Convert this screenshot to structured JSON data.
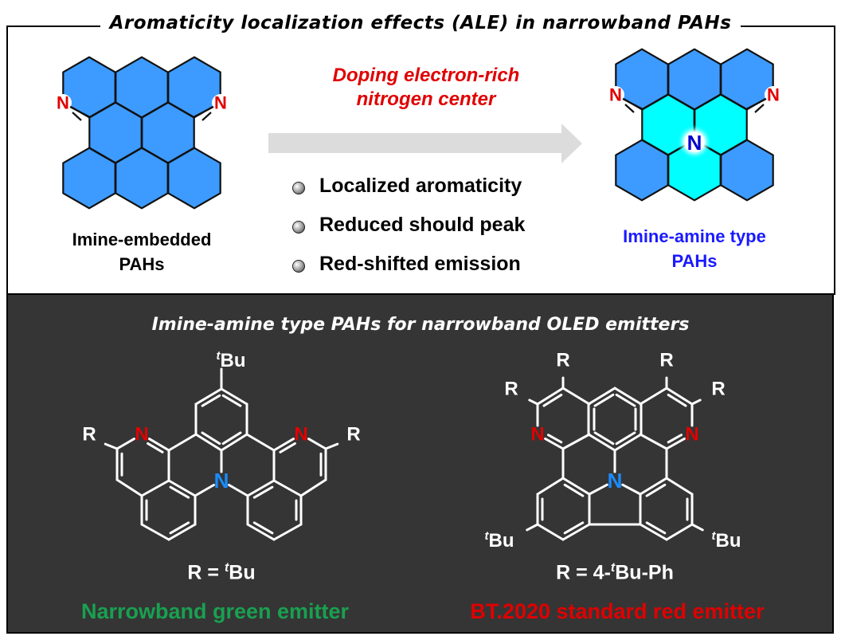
{
  "title": "Aromaticity localization effects (ALE) in narrowband PAHs",
  "top": {
    "left_molecule": {
      "label_line1": "Imine-embedded",
      "label_line2": "PAHs",
      "atom_N": "N"
    },
    "arrow_text_line1": "Doping electron-rich",
    "arrow_text_line2": "nitrogen center",
    "bullets": [
      "Localized aromaticity",
      "Reduced should peak",
      "Red-shifted emission"
    ],
    "right_molecule": {
      "label_line1": "Imine-amine type",
      "label_line2": "PAHs",
      "atom_N": "N",
      "center_N": "N"
    }
  },
  "bottom": {
    "title": "Imine-amine type PAHs for narrowband OLED emitters",
    "left": {
      "R_def_prefix": "R = ",
      "R_def_sup": "t",
      "R_def_main": "Bu",
      "emitter": "Narrowband green emitter",
      "atom_R": "R",
      "atom_N": "N",
      "tbu_sup": "t",
      "tbu_main": "Bu"
    },
    "right": {
      "R_def_prefix": "R = 4-",
      "R_def_sup": "t",
      "R_def_main": "Bu-Ph",
      "emitter": "BT.2020 standard red emitter",
      "atom_R": "R",
      "atom_N": "N",
      "tbu_sup": "t",
      "tbu_main": "Bu"
    }
  },
  "colors": {
    "ring_blue": "#3d9bff",
    "ring_cyan": "#00ffff",
    "imine_N": "#e00000",
    "amine_N_top": "#0000cc",
    "amine_N_bottom": "#1a8cff",
    "green_text": "#19a050",
    "red_text": "#e00000",
    "blue_label": "#1a1aff",
    "arrow": "#dcdcdc",
    "dark_bg": "#353535"
  }
}
